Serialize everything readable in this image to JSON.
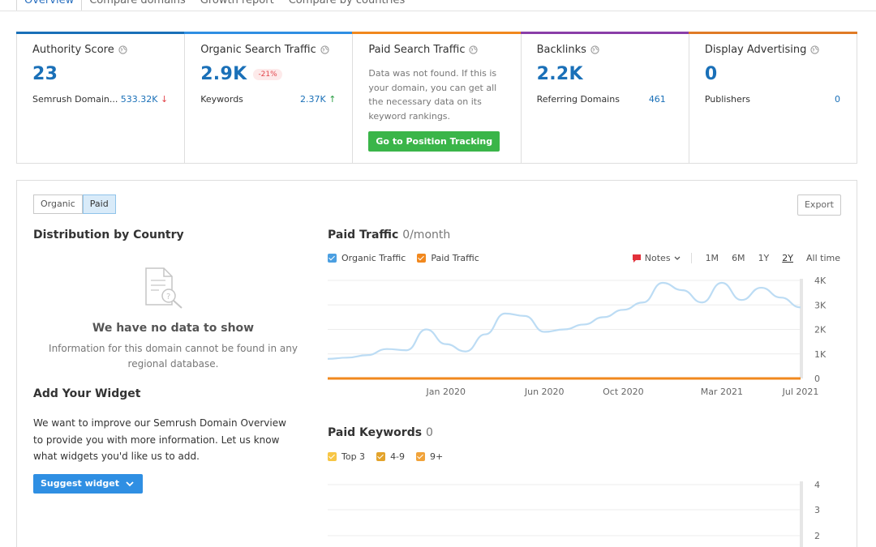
{
  "tabs": [
    "Overview",
    "Compare domains",
    "Growth report",
    "Compare by countries"
  ],
  "cards": [
    {
      "title": "Authority Score",
      "value": "23",
      "meta_label": "Semrush Domain...",
      "meta_value": "533.32K",
      "meta_arrow": "↓",
      "color": "#1a70b8"
    },
    {
      "title": "Organic Search Traffic",
      "value": "2.9K",
      "badge": "-21%",
      "meta_label": "Keywords",
      "meta_value": "2.37K",
      "meta_arrow": "↑",
      "color": "#2f8fe3"
    },
    {
      "title": "Paid Search Traffic",
      "message": "Data was not found. If this is your domain, you can get all the necessary data on its keyword rankings.",
      "button": "Go to Position Tracking",
      "color": "#f1881e"
    },
    {
      "title": "Backlinks",
      "value": "2.2K",
      "meta_label": "Referring Domains",
      "meta_value": "461",
      "color": "#8a3ea8"
    },
    {
      "title": "Display Advertising",
      "value": "0",
      "meta_label": "Publishers",
      "meta_value": "0",
      "color": "#e07b26"
    }
  ],
  "panel": {
    "toggle": [
      "Organic",
      "Paid"
    ],
    "toggle_selected": "Paid",
    "export_label": "Export",
    "distribution_title": "Distribution by Country",
    "nodata_title": "We have no data to show",
    "nodata_text": "Information for this domain cannot be found in any regional database.",
    "widget_title": "Add Your Widget",
    "widget_text": "We want to improve our Semrush Domain Overview to provide you with more information. Let us know what widgets you'd like us to add.",
    "suggest_label": "Suggest widget",
    "paid_traffic_title": "Paid Traffic",
    "paid_traffic_value": "0/month",
    "legend": [
      {
        "label": "Organic Traffic",
        "color": "#4b9fe1"
      },
      {
        "label": "Paid Traffic",
        "color": "#f1881e"
      }
    ],
    "notes_label": "Notes",
    "periods": [
      "1M",
      "6M",
      "1Y",
      "2Y",
      "All time"
    ],
    "active_period": "2Y",
    "paid_keywords_title": "Paid Keywords",
    "paid_keywords_value": "0",
    "kw_legend": [
      {
        "label": "Top 3",
        "color": "#f7c645"
      },
      {
        "label": "4-9",
        "color": "#e3a32b"
      },
      {
        "label": "9+",
        "color": "#f1a33a"
      }
    ]
  },
  "chart_data": [
    {
      "type": "line",
      "title": "Paid Traffic",
      "x": [
        "2019-07",
        "2019-08",
        "2019-09",
        "2019-10",
        "2019-11",
        "2019-12",
        "2020-01",
        "2020-02",
        "2020-03",
        "2020-04",
        "2020-05",
        "2020-06",
        "2020-07",
        "2020-08",
        "2020-09",
        "2020-10",
        "2020-11",
        "2020-12",
        "2021-01",
        "2021-02",
        "2021-03",
        "2021-04",
        "2021-05",
        "2021-06",
        "2021-07"
      ],
      "xticks": [
        "Jan 2020",
        "Jun 2020",
        "Oct 2020",
        "Mar 2021",
        "Jul 2021"
      ],
      "yticks": [
        "0",
        "1K",
        "2K",
        "3K",
        "4K"
      ],
      "ylim": [
        0,
        4000
      ],
      "series": [
        {
          "name": "Organic Traffic",
          "color": "#bcdcf4",
          "values": [
            800,
            850,
            950,
            1200,
            1150,
            2000,
            1400,
            1100,
            1800,
            2650,
            2550,
            1900,
            2000,
            2200,
            2500,
            2800,
            3100,
            3900,
            3600,
            3100,
            3900,
            3200,
            3700,
            3300,
            2900
          ]
        },
        {
          "name": "Paid Traffic",
          "color": "#f1881e",
          "values": [
            0,
            0,
            0,
            0,
            0,
            0,
            0,
            0,
            0,
            0,
            0,
            0,
            0,
            0,
            0,
            0,
            0,
            0,
            0,
            0,
            0,
            0,
            0,
            0,
            0
          ]
        }
      ]
    },
    {
      "type": "bar",
      "title": "Paid Keywords",
      "yticks": [
        "2",
        "3",
        "4"
      ],
      "ylim": [
        1,
        4
      ],
      "series": [
        {
          "name": "Top 3",
          "values": []
        },
        {
          "name": "4-9",
          "values": []
        },
        {
          "name": "9+",
          "values": []
        }
      ]
    }
  ]
}
